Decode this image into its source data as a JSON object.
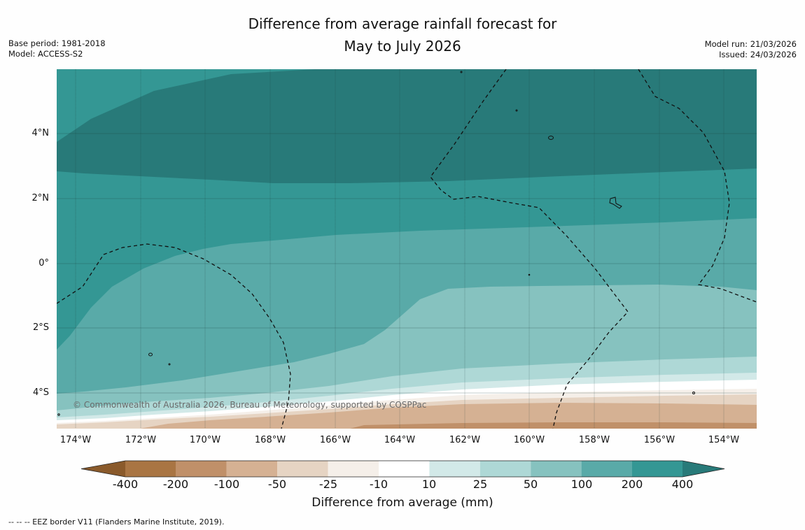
{
  "title_line1": "Difference from average rainfall forecast for",
  "title_line2": "May to July 2026",
  "meta_left": {
    "base_period": "Base period: 1981-2018",
    "model": "Model: ACCESS-S2"
  },
  "meta_right": {
    "model_run": "Model run: 21/03/2026",
    "issued": "Issued: 24/03/2026"
  },
  "map": {
    "copyright": "© Commonwealth of Australia 2026, Bureau of Meteorology, supported by COSPPac",
    "lat_labels": [
      "4°N",
      "2°N",
      "0°",
      "2°S",
      "4°S"
    ],
    "lon_labels": [
      "174°W",
      "172°W",
      "170°W",
      "168°W",
      "166°W",
      "164°W",
      "162°W",
      "160°W",
      "158°W",
      "156°W",
      "154°W"
    ]
  },
  "colorbar": {
    "title": "Difference from average (mm)",
    "labels": [
      "-400",
      "-200",
      "-100",
      "-50",
      "-25",
      "-10",
      "10",
      "25",
      "50",
      "100",
      "200",
      "400"
    ],
    "colors": {
      "lt_-400": "#8a5a2b",
      "-400_-200": "#a97543",
      "-200_-100": "#c09069",
      "-100_-50": "#d5b193",
      "-50_-25": "#e6d4c3",
      "-25_-10": "#f5efe9",
      "-10_10": "#ffffff",
      "10_25": "#d2e9e8",
      "25_50": "#aed8d6",
      "50_100": "#86c2bf",
      "100_200": "#59aaa8",
      "200_400": "#349794",
      "gt_400": "#287a79"
    }
  },
  "footnote": "--  --  -- EEZ border V11 (Flanders Marine Institute, 2019)."
}
